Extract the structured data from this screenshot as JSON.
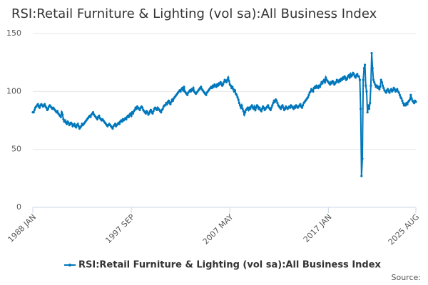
{
  "chart_data": {
    "type": "line",
    "title": "RSI:Retail Furniture & Lighting (vol sa):All Business Index",
    "source": "Source:",
    "grid": true,
    "legend": "bottom",
    "ylim": [
      0,
      150
    ],
    "yticks": [
      0,
      50,
      100,
      150
    ],
    "categories": [
      "1988 JAN",
      null,
      null,
      null,
      null,
      null,
      null,
      null,
      null,
      null,
      null,
      null,
      null,
      null,
      null,
      null,
      null,
      null,
      null,
      null,
      null,
      null,
      null,
      null,
      null,
      null,
      null,
      null,
      null,
      null,
      null,
      null,
      null,
      null,
      null,
      null,
      null,
      null,
      null,
      null,
      null,
      null,
      null,
      null,
      null,
      null,
      null,
      null,
      null,
      null,
      null,
      null,
      null,
      null,
      null,
      null,
      null,
      null,
      null,
      null,
      null,
      null,
      null,
      null,
      null,
      null,
      null,
      null,
      null,
      null,
      null,
      null,
      null,
      null,
      null,
      null,
      null,
      null,
      null,
      null,
      null,
      null,
      null,
      null,
      null,
      null,
      null,
      null,
      null,
      null,
      null,
      null,
      null,
      null,
      null,
      null,
      null,
      null,
      null,
      null,
      null,
      null,
      null,
      null,
      null,
      null,
      null,
      null,
      null,
      null,
      null,
      null,
      null,
      null,
      null,
      null,
      "1997 SEP",
      null,
      null,
      null,
      null,
      null,
      null,
      null,
      null,
      null,
      null,
      null,
      null,
      null,
      null,
      null,
      null,
      null,
      null,
      null,
      null,
      null,
      null,
      null,
      null,
      null,
      null,
      null,
      null,
      null,
      null,
      null,
      null,
      null,
      null,
      null,
      null,
      null,
      null,
      null,
      null,
      null,
      null,
      null,
      null,
      null,
      null,
      null,
      null,
      null,
      null,
      null,
      null,
      null,
      null,
      null,
      null,
      null,
      null,
      null,
      null,
      null,
      null,
      null,
      null,
      null,
      null,
      null,
      null,
      null,
      null,
      null,
      null,
      null,
      null,
      null,
      null,
      null,
      null,
      null,
      null,
      null,
      null,
      null,
      null,
      null,
      null,
      null,
      null,
      null,
      null,
      null,
      null,
      null,
      null,
      null,
      null,
      null,
      null,
      null,
      null,
      null,
      null,
      null,
      null,
      null,
      null,
      null,
      null,
      null,
      null,
      null,
      null,
      null,
      null,
      null,
      "2007 MAY",
      null,
      null,
      null,
      null,
      null,
      null,
      null,
      null,
      null,
      null,
      null,
      null,
      null,
      null,
      null,
      null,
      null,
      null,
      null,
      null,
      null,
      null,
      null,
      null,
      null,
      null,
      null,
      null,
      null,
      null,
      null,
      null,
      null,
      null,
      null,
      null,
      null,
      null,
      null,
      null,
      null,
      null,
      null,
      null,
      null,
      null,
      null,
      null,
      null,
      null,
      null,
      null,
      null,
      null,
      null,
      null,
      null,
      null,
      null,
      null,
      null,
      null,
      null,
      null,
      null,
      null,
      null,
      null,
      null,
      null,
      null,
      null,
      null,
      null,
      null,
      null,
      null,
      null,
      null,
      null,
      null,
      null,
      null,
      null,
      null,
      null,
      null,
      null,
      null,
      null,
      null,
      null,
      null,
      null,
      null,
      null,
      null,
      null,
      null,
      null,
      null,
      null,
      null,
      null,
      null,
      null,
      null,
      null,
      null,
      null,
      null,
      null,
      null,
      null,
      null,
      "2017 JAN",
      null,
      null,
      null,
      null,
      null,
      null,
      null,
      null,
      null,
      null,
      null,
      null,
      null,
      null,
      null,
      null,
      null,
      null,
      null,
      null,
      null,
      null,
      null,
      null,
      null,
      null,
      null,
      null,
      null,
      null,
      null,
      null,
      null,
      null,
      null,
      null,
      null,
      null,
      null,
      null,
      null,
      null,
      null,
      null,
      null,
      null,
      null,
      null,
      null,
      null,
      null,
      null,
      null,
      null,
      null,
      null,
      null,
      null,
      null,
      null,
      null,
      null,
      null,
      null,
      null,
      null,
      null,
      null,
      null,
      null,
      null,
      null,
      null,
      null,
      null,
      null,
      null,
      null,
      null,
      null,
      null,
      null,
      null,
      null,
      null,
      null,
      null,
      null,
      null,
      null,
      null,
      null,
      null,
      null,
      null,
      null,
      null,
      null,
      null,
      null,
      null,
      null,
      "2025 AUG"
    ],
    "series": [
      {
        "name": "RSI:Retail Furniture & Lighting (vol sa):All Business Index",
        "color": "#0077bb",
        "values": [
          82,
          82,
          84,
          86,
          87,
          88,
          89,
          87,
          86,
          88,
          89,
          88,
          87,
          88,
          89,
          87,
          86,
          84,
          85,
          87,
          88,
          87,
          86,
          85,
          86,
          85,
          84,
          83,
          82,
          83,
          81,
          80,
          79,
          78,
          82,
          80,
          76,
          74,
          75,
          73,
          72,
          74,
          73,
          71,
          72,
          73,
          72,
          70,
          71,
          72,
          70,
          69,
          71,
          72,
          70,
          68,
          69,
          70,
          72,
          71,
          72,
          73,
          74,
          75,
          76,
          77,
          78,
          79,
          78,
          80,
          81,
          82,
          80,
          79,
          78,
          77,
          76,
          78,
          79,
          77,
          76,
          75,
          76,
          75,
          74,
          73,
          72,
          71,
          70,
          71,
          72,
          71,
          70,
          69,
          68,
          70,
          71,
          72,
          70,
          71,
          72,
          73,
          72,
          74,
          75,
          74,
          76,
          75,
          76,
          77,
          76,
          78,
          79,
          78,
          80,
          81,
          79,
          82,
          81,
          83,
          84,
          86,
          85,
          87,
          86,
          85,
          84,
          86,
          87,
          86,
          84,
          83,
          82,
          81,
          83,
          82,
          80,
          81,
          83,
          84,
          82,
          81,
          83,
          85,
          86,
          85,
          84,
          86,
          85,
          84,
          83,
          82,
          84,
          85,
          87,
          88,
          88,
          90,
          89,
          91,
          92,
          90,
          89,
          91,
          93,
          92,
          94,
          95,
          96,
          97,
          98,
          99,
          100,
          101,
          100,
          102,
          103,
          101,
          104,
          100,
          99,
          98,
          97,
          99,
          100,
          101,
          100,
          102,
          101,
          103,
          100,
          99,
          98,
          99,
          100,
          101,
          102,
          103,
          104,
          102,
          101,
          100,
          99,
          98,
          97,
          99,
          100,
          101,
          102,
          103,
          104,
          103,
          105,
          104,
          106,
          105,
          104,
          106,
          105,
          107,
          106,
          108,
          107,
          105,
          106,
          108,
          110,
          109,
          108,
          110,
          112,
          109,
          106,
          105,
          103,
          104,
          102,
          100,
          101,
          98,
          97,
          95,
          93,
          90,
          88,
          86,
          88,
          85,
          83,
          80,
          82,
          84,
          85,
          86,
          84,
          86,
          85,
          87,
          88,
          86,
          85,
          87,
          84,
          86,
          88,
          87,
          85,
          86,
          84,
          83,
          85,
          87,
          86,
          84,
          85,
          86,
          87,
          88,
          86,
          85,
          84,
          86,
          88,
          90,
          92,
          91,
          93,
          92,
          90,
          88,
          87,
          86,
          85,
          87,
          88,
          86,
          84,
          85,
          87,
          86,
          85,
          86,
          87,
          86,
          88,
          87,
          86,
          85,
          87,
          86,
          88,
          87,
          86,
          87,
          88,
          89,
          87,
          86,
          88,
          90,
          91,
          92,
          93,
          94,
          95,
          97,
          99,
          100,
          102,
          101,
          100,
          103,
          104,
          103,
          105,
          104,
          103,
          105,
          104,
          106,
          108,
          107,
          109,
          110,
          108,
          112,
          110,
          109,
          108,
          107,
          106,
          108,
          107,
          109,
          108,
          106,
          107,
          108,
          110,
          109,
          108,
          110,
          109,
          111,
          110,
          112,
          111,
          113,
          112,
          110,
          111,
          113,
          114,
          112,
          115,
          113,
          114,
          116,
          115,
          113,
          112,
          114,
          115,
          113,
          113,
          110,
          85,
          27,
          42,
          110,
          120,
          123,
          105,
          100,
          82,
          88,
          85,
          90,
          105,
          133,
          120,
          110,
          108,
          106,
          104,
          105,
          103,
          104,
          102,
          104,
          110,
          108,
          105,
          103,
          101,
          100,
          99,
          101,
          102,
          100,
          99,
          101,
          102,
          100,
          101,
          103,
          102,
          100,
          101,
          102,
          100,
          99,
          97,
          95,
          94,
          92,
          90,
          88,
          89,
          88,
          90,
          89,
          91,
          92,
          93,
          97,
          94,
          92,
          91,
          90,
          92,
          91
        ]
      }
    ]
  }
}
